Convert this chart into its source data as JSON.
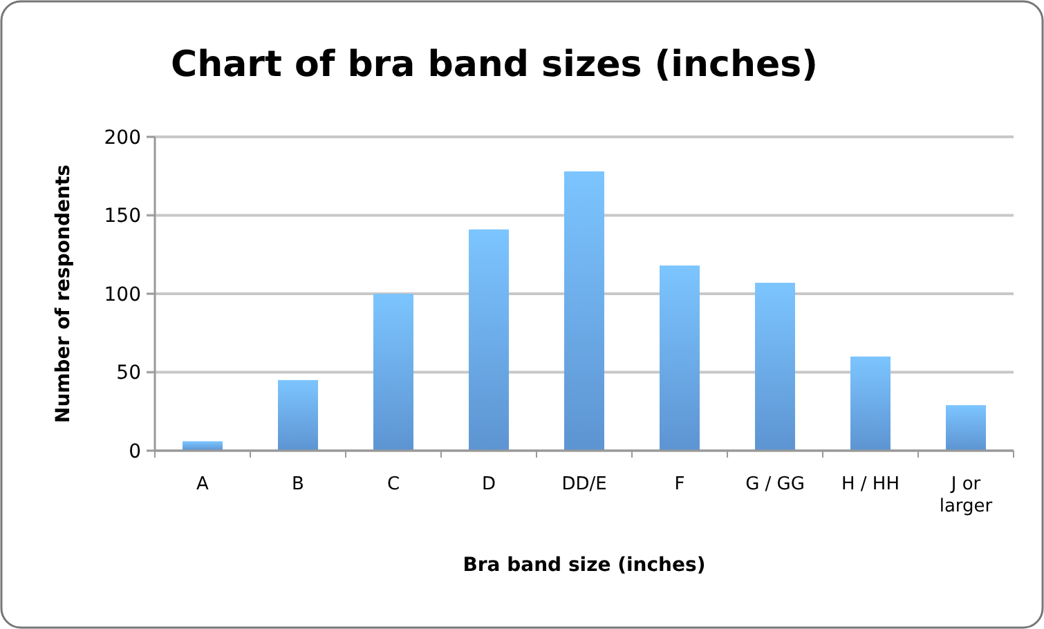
{
  "chart_data": {
    "type": "bar",
    "title": "Chart of bra band sizes (inches)",
    "xlabel": "Bra band size (inches)",
    "ylabel": "Number of respondents",
    "categories": [
      "A",
      "B",
      "C",
      "D",
      "DD/E",
      "F",
      "G / GG",
      "H / HH",
      "J or larger"
    ],
    "values": [
      6,
      45,
      100,
      141,
      178,
      118,
      107,
      60,
      29
    ],
    "color": "#68a5ea",
    "ylim": [
      0,
      200
    ],
    "yticks": [
      0,
      50,
      100,
      150,
      200
    ],
    "grid": "y"
  }
}
